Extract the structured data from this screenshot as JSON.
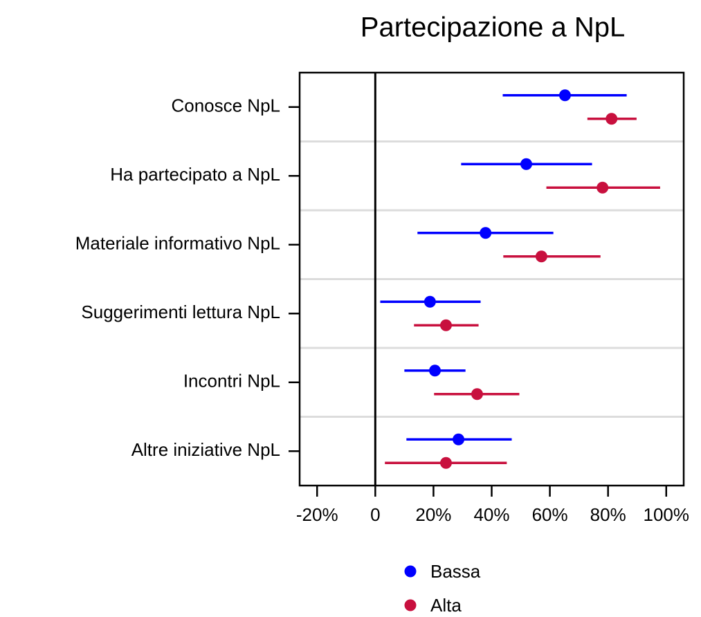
{
  "chart_data": {
    "type": "dot-errorbar",
    "title": "Partecipazione a NpL",
    "categories": [
      "Conosce NpL",
      "Ha partecipato a NpL",
      "Materiale informativo NpL",
      "Suggerimenti lettura NpL",
      "Incontri NpL",
      "Altre iniziative NpL"
    ],
    "series": [
      {
        "name": "Bassa",
        "color": "#0000ff",
        "values": [
          65.2,
          51.9,
          37.9,
          18.8,
          20.5,
          28.6
        ],
        "low": [
          43.8,
          29.5,
          14.5,
          1.7,
          10,
          10.7
        ],
        "high": [
          86.4,
          74.5,
          61.2,
          36.2,
          31,
          46.9
        ]
      },
      {
        "name": "Alta",
        "color": "#c8103e",
        "values": [
          81.2,
          78.1,
          57.1,
          24.3,
          35,
          24.3
        ],
        "low": [
          72.9,
          58.8,
          44,
          13.3,
          20.2,
          3.3
        ],
        "high": [
          89.8,
          97.9,
          77.4,
          35.5,
          49.5,
          45.2
        ]
      }
    ],
    "xlim": [
      -26,
      106
    ],
    "xticks": [
      {
        "value": -20,
        "label": "-20%"
      },
      0,
      {
        "value": 20,
        "label": "20%"
      },
      {
        "value": 40,
        "label": "40%"
      },
      {
        "value": 60,
        "label": "60%"
      },
      {
        "value": 80,
        "label": "80%"
      },
      {
        "value": 100,
        "label": "100%"
      }
    ],
    "reference_line": 0,
    "legend": "bottom"
  }
}
